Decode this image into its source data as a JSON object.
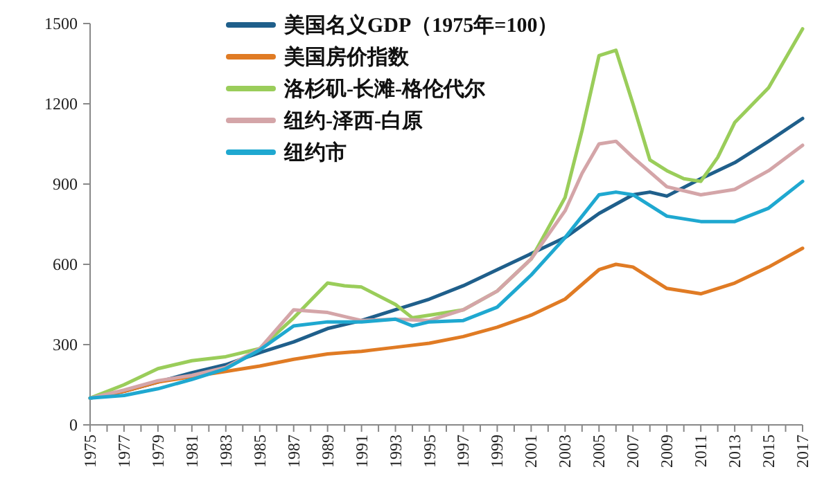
{
  "chart_data": {
    "type": "line",
    "xlim": [
      1975,
      2017
    ],
    "ylim": [
      0,
      1500
    ],
    "yticks": [
      0,
      300,
      600,
      900,
      1200,
      1500
    ],
    "xticks": [
      1975,
      {
        "value": 1976,
        "label": null
      },
      1977,
      {
        "value": 1978,
        "label": null
      },
      1979,
      {
        "value": 1980,
        "label": null
      },
      1981,
      {
        "value": 1982,
        "label": null
      },
      1983,
      {
        "value": 1984,
        "label": null
      },
      1985,
      {
        "value": 1986,
        "label": null
      },
      1987,
      {
        "value": 1988,
        "label": null
      },
      1989,
      {
        "value": 1990,
        "label": null
      },
      1991,
      {
        "value": 1992,
        "label": null
      },
      1993,
      {
        "value": 1994,
        "label": null
      },
      1995,
      {
        "value": 1996,
        "label": null
      },
      1997,
      {
        "value": 1998,
        "label": null
      },
      1999,
      {
        "value": 2000,
        "label": null
      },
      2001,
      {
        "value": 2002,
        "label": null
      },
      2003,
      {
        "value": 2004,
        "label": null
      },
      2005,
      {
        "value": 2006,
        "label": null
      },
      2007,
      {
        "value": 2008,
        "label": null
      },
      2009,
      {
        "value": 2010,
        "label": null
      },
      2011,
      {
        "value": 2012,
        "label": null
      },
      2013,
      {
        "value": 2014,
        "label": null
      },
      2015,
      {
        "value": 2016,
        "label": null
      },
      2017
    ],
    "legend": "top left",
    "grid": false,
    "marker": "none",
    "line_style": "solid",
    "series": [
      {
        "name": "美国名义GDP（1975年=100）",
        "color": "#1f5f8b",
        "x": [
          1975,
          1977,
          1979,
          1981,
          1983,
          1985,
          1987,
          1989,
          1991,
          1993,
          1995,
          1997,
          1999,
          2001,
          2003,
          2005,
          2007,
          2008,
          2009,
          2011,
          2013,
          2015,
          2017
        ],
        "values": [
          100,
          125,
          160,
          195,
          225,
          270,
          310,
          360,
          390,
          430,
          470,
          520,
          580,
          640,
          700,
          790,
          860,
          870,
          855,
          920,
          980,
          1060,
          1145
        ]
      },
      {
        "name": "美国房价指数",
        "color": "#e07b24",
        "x": [
          1975,
          1977,
          1979,
          1981,
          1983,
          1985,
          1987,
          1989,
          1991,
          1993,
          1995,
          1997,
          1999,
          2001,
          2003,
          2005,
          2006,
          2007,
          2009,
          2011,
          2013,
          2015,
          2017
        ],
        "values": [
          100,
          125,
          160,
          180,
          200,
          220,
          245,
          265,
          275,
          290,
          305,
          330,
          365,
          410,
          470,
          580,
          600,
          590,
          510,
          490,
          530,
          590,
          660
        ]
      },
      {
        "name": "洛杉矶-长滩-格伦代尔",
        "color": "#9acd5a",
        "x": [
          1975,
          1977,
          1979,
          1981,
          1983,
          1985,
          1987,
          1989,
          1990,
          1991,
          1993,
          1994,
          1995,
          1997,
          1999,
          2001,
          2003,
          2004,
          2005,
          2006,
          2007,
          2008,
          2009,
          2010,
          2011,
          2012,
          2013,
          2015,
          2017
        ],
        "values": [
          100,
          150,
          210,
          240,
          255,
          285,
          400,
          530,
          520,
          515,
          450,
          400,
          410,
          430,
          500,
          620,
          850,
          1100,
          1380,
          1400,
          1200,
          990,
          950,
          920,
          910,
          1000,
          1130,
          1260,
          1480
        ]
      },
      {
        "name": "纽约-泽西-白原",
        "color": "#d4a5a8",
        "x": [
          1975,
          1977,
          1979,
          1981,
          1983,
          1985,
          1987,
          1989,
          1991,
          1993,
          1995,
          1997,
          1999,
          2001,
          2003,
          2004,
          2005,
          2006,
          2007,
          2009,
          2011,
          2013,
          2015,
          2017
        ],
        "values": [
          100,
          130,
          165,
          185,
          215,
          285,
          430,
          420,
          390,
          395,
          390,
          430,
          500,
          620,
          800,
          940,
          1050,
          1060,
          1000,
          890,
          860,
          880,
          950,
          1045
        ]
      },
      {
        "name": "纽约市",
        "color": "#1fa8d0",
        "x": [
          1975,
          1977,
          1979,
          1981,
          1983,
          1985,
          1987,
          1989,
          1991,
          1993,
          1994,
          1995,
          1997,
          1999,
          2001,
          2003,
          2005,
          2006,
          2007,
          2009,
          2011,
          2013,
          2015,
          2017
        ],
        "values": [
          100,
          110,
          135,
          170,
          210,
          280,
          370,
          385,
          385,
          395,
          370,
          385,
          390,
          440,
          560,
          700,
          860,
          870,
          860,
          780,
          760,
          760,
          810,
          910
        ]
      }
    ]
  }
}
